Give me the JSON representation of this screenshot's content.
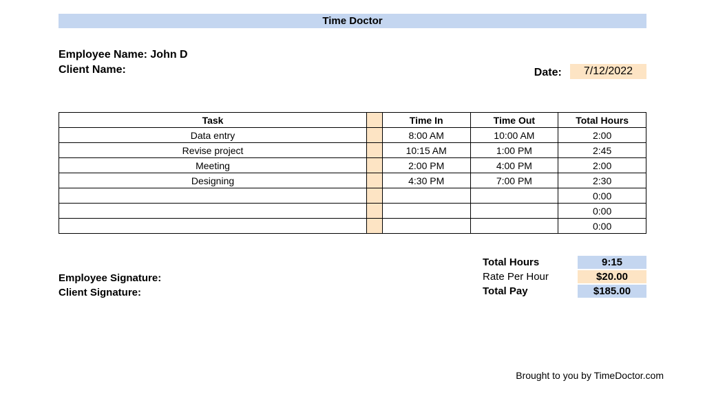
{
  "banner": {
    "title": "Time Doctor"
  },
  "header": {
    "employee_label": "Employee Name:",
    "employee_name": "John D",
    "client_label": "Client Name:",
    "date_label": "Date:",
    "date_value": "7/12/2022"
  },
  "table": {
    "columns": {
      "task": "Task",
      "time_in": "Time In",
      "time_out": "Time Out",
      "total_hours": "Total Hours"
    },
    "rows": [
      {
        "task": "Data entry",
        "time_in": "8:00 AM",
        "time_out": "10:00 AM",
        "total": "2:00"
      },
      {
        "task": "Revise project",
        "time_in": "10:15 AM",
        "time_out": "1:00 PM",
        "total": "2:45"
      },
      {
        "task": "Meeting",
        "time_in": "2:00 PM",
        "time_out": "4:00 PM",
        "total": "2:00"
      },
      {
        "task": "Designing",
        "time_in": "4:30 PM",
        "time_out": "7:00 PM",
        "total": "2:30"
      },
      {
        "task": "",
        "time_in": "",
        "time_out": "",
        "total": "0:00"
      },
      {
        "task": "",
        "time_in": "",
        "time_out": "",
        "total": "0:00"
      },
      {
        "task": "",
        "time_in": "",
        "time_out": "",
        "total": "0:00"
      }
    ],
    "separator_color": "#fde4c4",
    "border_color": "#000000"
  },
  "signatures": {
    "employee": "Employee Signature:",
    "client": "Client Signature:"
  },
  "totals": {
    "total_hours_label": "Total Hours",
    "total_hours_value": "9:15",
    "rate_label": "Rate Per Hour",
    "rate_value": "$20.00",
    "total_pay_label": "Total Pay",
    "total_pay_value": "$185.00"
  },
  "footer": {
    "credit": "Brought to you by TimeDoctor.com"
  },
  "colors": {
    "banner_bg": "#c4d6f0",
    "highlight_blue": "#c4d6f0",
    "highlight_peach": "#fde4c4",
    "background": "#ffffff",
    "text": "#000000"
  }
}
